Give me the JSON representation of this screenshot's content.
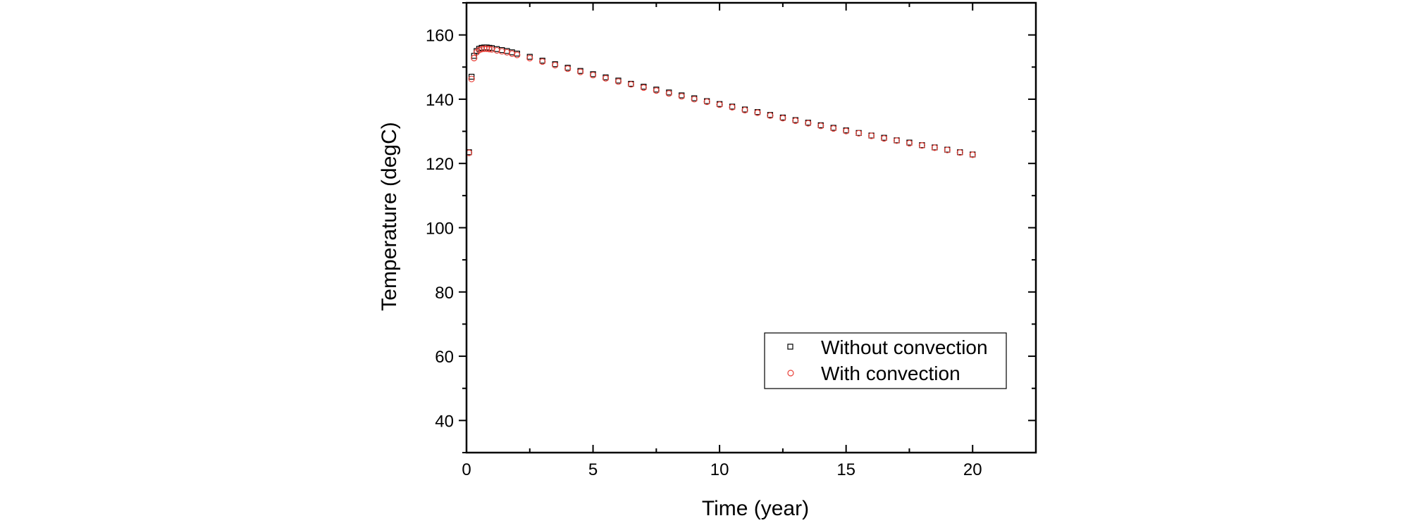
{
  "chart_data": {
    "type": "scatter",
    "xlabel": "Time (year)",
    "ylabel": "Temperature (degC)",
    "xlim": [
      0,
      22.5
    ],
    "ylim": [
      30,
      170
    ],
    "xticks": [
      0,
      5,
      10,
      15,
      20
    ],
    "yticks": [
      40,
      60,
      80,
      100,
      120,
      140,
      160
    ],
    "legend_position": "bottom-right",
    "series": [
      {
        "name": "Without convection",
        "marker": "square",
        "color": "#000000",
        "x": [
          0.1,
          0.2,
          0.3,
          0.4,
          0.5,
          0.6,
          0.7,
          0.8,
          0.9,
          1.0,
          1.2,
          1.4,
          1.6,
          1.8,
          2.0,
          2.5,
          3.0,
          3.5,
          4.0,
          4.5,
          5.0,
          5.5,
          6.0,
          6.5,
          7.0,
          7.5,
          8.0,
          8.5,
          9.0,
          9.5,
          10.0,
          10.5,
          11.0,
          11.5,
          12.0,
          12.5,
          13.0,
          13.5,
          14.0,
          14.5,
          15.0,
          15.5,
          16.0,
          16.5,
          17.0,
          17.5,
          18.0,
          18.5,
          19.0,
          19.5,
          20.0
        ],
        "y": [
          123.5,
          147.0,
          153.5,
          155.0,
          155.7,
          156.0,
          156.1,
          156.1,
          156.0,
          155.9,
          155.6,
          155.3,
          155.0,
          154.6,
          154.2,
          153.2,
          152.0,
          150.9,
          149.8,
          148.8,
          147.8,
          146.8,
          145.8,
          144.8,
          143.9,
          143.0,
          142.1,
          141.2,
          140.3,
          139.4,
          138.5,
          137.7,
          136.8,
          136.0,
          135.1,
          134.3,
          133.5,
          132.7,
          131.9,
          131.1,
          130.3,
          129.5,
          128.7,
          128.0,
          127.2,
          126.5,
          125.7,
          125.0,
          124.3,
          123.5,
          122.8
        ]
      },
      {
        "name": "With convection",
        "marker": "circle",
        "color": "#e8423a",
        "x": [
          0.1,
          0.2,
          0.3,
          0.4,
          0.5,
          0.6,
          0.7,
          0.8,
          0.9,
          1.0,
          1.2,
          1.4,
          1.6,
          1.8,
          2.0,
          2.5,
          3.0,
          3.5,
          4.0,
          4.5,
          5.0,
          5.5,
          6.0,
          6.5,
          7.0,
          7.5,
          8.0,
          8.5,
          9.0,
          9.5,
          10.0,
          10.5,
          11.0,
          11.5,
          12.0,
          12.5,
          13.0,
          13.5,
          14.0,
          14.5,
          15.0,
          15.5,
          16.0,
          16.5,
          17.0,
          17.5,
          18.0,
          18.5,
          19.0,
          19.5,
          20.0
        ],
        "y": [
          123.3,
          146.3,
          152.8,
          154.6,
          155.3,
          155.6,
          155.7,
          155.7,
          155.6,
          155.5,
          155.2,
          154.9,
          154.6,
          154.2,
          153.8,
          152.8,
          151.7,
          150.6,
          149.5,
          148.5,
          147.5,
          146.5,
          145.5,
          144.6,
          143.6,
          142.7,
          141.8,
          140.9,
          140.0,
          139.2,
          138.3,
          137.5,
          136.6,
          135.8,
          134.9,
          134.1,
          133.3,
          132.5,
          131.7,
          130.9,
          130.1,
          129.4,
          128.6,
          127.8,
          127.1,
          126.3,
          125.6,
          124.9,
          124.2,
          123.4,
          122.7
        ]
      }
    ]
  }
}
